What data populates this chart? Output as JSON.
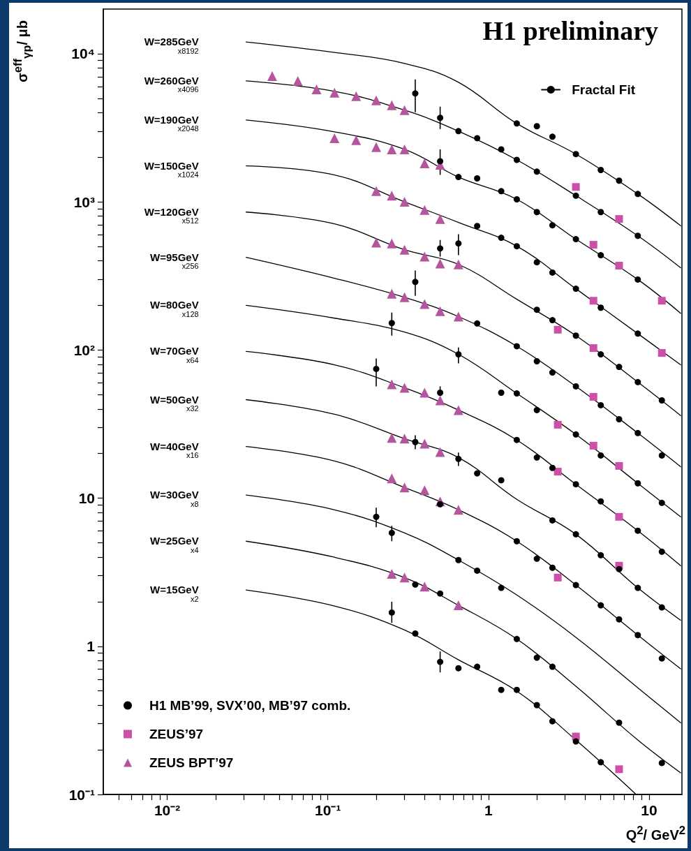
{
  "chart_data": {
    "type": "scatter",
    "title": "H1 preliminary",
    "xlabel": "Q$^{2}$/ GeV$^{2}$",
    "ylabel": "σ$^{eff}$$_{γp}$/ μb",
    "log": "xy",
    "legend": "bottom left",
    "xlim": [
      0.004,
      16
    ],
    "ylim": [
      0.1,
      20000
    ],
    "xticks": [
      {
        "value": 0.01,
        "label": "10⁻²"
      },
      {
        "value": 0.1,
        "label": "10⁻¹"
      },
      1,
      10
    ],
    "yticks": [
      {
        "value": 0.1,
        "label": "10⁻¹"
      },
      1,
      10,
      {
        "value": 100,
        "label": "10²"
      },
      {
        "value": 1000,
        "label": "10³"
      },
      {
        "value": 10000,
        "label": "10⁴"
      }
    ],
    "annotations": [
      "W=285GeV x8192",
      "W=260GeV x4096",
      "W=190GeV x2048",
      "W=150GeV x1024",
      "W=120GeV x512",
      "W=95GeV x256",
      "W=80GeV x128",
      "W=70GeV x64",
      "W=50GeV x32",
      "W=40GeV x16",
      "W=30GeV x8",
      "W=25GeV x4",
      "W=15GeV x2"
    ],
    "series": [
      {
        "name": "Fractal Fit",
        "type": "line",
        "color": "#000000",
        "marker": "none",
        "x": [
          0.031,
          0.11,
          0.3,
          0.65,
          1.5,
          3.5,
          8.5,
          15.7
        ],
        "values": [
          12000,
          10200,
          8600,
          6410,
          3380,
          2100,
          1130,
          690
        ]
      },
      {
        "type": "line",
        "color": "#000000",
        "marker": "none",
        "x": [
          0.031,
          0.11,
          0.3,
          0.65,
          1.5,
          3.5,
          8.5,
          15.7
        ],
        "values": [
          6550,
          5570,
          4160,
          3000,
          1920,
          1100,
          590,
          359
        ]
      },
      {
        "type": "line",
        "color": "#000000",
        "marker": "none",
        "x": [
          0.031,
          0.11,
          0.3,
          0.65,
          1.5,
          3.5,
          8.5,
          15.7
        ],
        "values": [
          3570,
          2970,
          2260,
          1470,
          1040,
          560,
          299,
          177
        ]
      },
      {
        "type": "line",
        "color": "#000000",
        "marker": "none",
        "x": [
          0.031,
          0.11,
          0.3,
          0.65,
          1.5,
          3.5,
          8.5,
          15.7
        ],
        "values": [
          1750,
          1520,
          1000,
          726,
          502,
          259,
          129,
          79.4
        ]
      },
      {
        "type": "line",
        "color": "#000000",
        "marker": "none",
        "x": [
          0.031,
          0.11,
          0.3,
          0.65,
          1.5,
          3.5,
          8.5,
          15.7
        ],
        "values": [
          853,
          710,
          475,
          378,
          220,
          125,
          60.7,
          36.1
        ]
      },
      {
        "type": "line",
        "color": "#000000",
        "marker": "none",
        "x": [
          0.031,
          0.11,
          0.3,
          0.65,
          1.5,
          3.5,
          8.5,
          15.7
        ],
        "values": [
          422,
          305,
          227,
          168,
          106,
          56.8,
          27.5,
          16.3
        ]
      },
      {
        "type": "line",
        "color": "#000000",
        "marker": "none",
        "x": [
          0.031,
          0.11,
          0.3,
          0.65,
          1.5,
          3.5,
          8.5,
          15.7
        ],
        "values": [
          200,
          164,
          132,
          93.5,
          50.9,
          26.9,
          12.6,
          7.48
        ]
      },
      {
        "type": "line",
        "color": "#000000",
        "marker": "none",
        "x": [
          0.031,
          0.11,
          0.3,
          0.65,
          1.5,
          3.5,
          8.5,
          15.7
        ],
        "values": [
          97.7,
          79.4,
          55.6,
          39.3,
          24.7,
          12.4,
          6.03,
          3.5
        ]
      },
      {
        "type": "line",
        "color": "#000000",
        "marker": "none",
        "x": [
          0.031,
          0.11,
          0.3,
          0.65,
          1.5,
          3.5,
          8.5,
          15.7
        ],
        "values": [
          46.2,
          36.8,
          25.2,
          18.8,
          9.82,
          5.7,
          2.48,
          1.5
        ]
      },
      {
        "type": "line",
        "color": "#000000",
        "marker": "none",
        "x": [
          0.031,
          0.11,
          0.3,
          0.65,
          1.5,
          3.5,
          8.5,
          15.7
        ],
        "values": [
          22.3,
          17.8,
          11.8,
          8.34,
          5.12,
          2.59,
          1.19,
          0.705
        ]
      },
      {
        "type": "line",
        "color": "#000000",
        "marker": "none",
        "x": [
          0.031,
          0.11,
          0.3,
          0.65,
          1.5,
          3.5,
          8.5,
          15.7
        ],
        "values": [
          10.5,
          8.34,
          5.83,
          3.82,
          2.22,
          1.15,
          0.525,
          0.305
        ]
      },
      {
        "type": "line",
        "color": "#000000",
        "marker": "none",
        "x": [
          0.031,
          0.11,
          0.3,
          0.65,
          1.5,
          3.5,
          8.5,
          15.7
        ],
        "values": [
          5.12,
          3.99,
          2.91,
          1.89,
          1.12,
          0.537,
          0.233,
          0.14
        ]
      },
      {
        "type": "line",
        "color": "#000000",
        "marker": "none",
        "x": [
          0.031,
          0.11,
          0.3,
          0.65,
          1.5,
          3.5,
          8.3
        ],
        "values": [
          2.4,
          1.87,
          1.29,
          0.811,
          0.498,
          0.233,
          0.1
        ]
      },
      {
        "name": "H1 MB’99, SVX’00, MB’97 comb.",
        "type": "scatter",
        "color": "#000000",
        "marker": "circle",
        "x": [
          1.5,
          2,
          2.5,
          3.5,
          5,
          6.5,
          8.5,
          0.35,
          0.5,
          0.65,
          0.85,
          1.2,
          1.5,
          2,
          3.5,
          5,
          8.5,
          0.5,
          0.65,
          0.85,
          1.2,
          1.5,
          2,
          2.5,
          3.5,
          5,
          8.5,
          0.85,
          1.2,
          1.5,
          2,
          2.5,
          3.5,
          5,
          8.5,
          0.5,
          0.65,
          2,
          2.5,
          3.5,
          5,
          6.5,
          8.5,
          12,
          0.35,
          0.85,
          1.5,
          2,
          2.5,
          3.5,
          5,
          6.5,
          8.5,
          12,
          0.25,
          0.65,
          1.2,
          1.5,
          2,
          3.5,
          5,
          8.5,
          12,
          0.2,
          0.5,
          1.5,
          2,
          2.5,
          3.5,
          5,
          8.5,
          12,
          0.35,
          0.65,
          0.85,
          1.2,
          2.5,
          3.5,
          5,
          6.5,
          8.5,
          12,
          0.5,
          1.5,
          2,
          2.5,
          3.5,
          5,
          6.5,
          8.5,
          12,
          0.2,
          0.25,
          0.65,
          0.85,
          1.2,
          0.35,
          0.5,
          1.5,
          2,
          2.5,
          6.5,
          12,
          0.25,
          0.35,
          0.5,
          0.65,
          0.85,
          1.2,
          1.5,
          2,
          2.5,
          3.5,
          5
        ],
        "values": [
          3380,
          3240,
          2750,
          2100,
          1640,
          1390,
          1130,
          5390,
          3690,
          3000,
          2690,
          2260,
          1920,
          1600,
          1100,
          853,
          590,
          1880,
          1470,
          1440,
          1180,
          1040,
          853,
          695,
          560,
          436,
          299,
          687,
          572,
          502,
          391,
          333,
          259,
          193,
          129,
          485,
          524,
          187,
          159,
          125,
          93.5,
          76.9,
          60.7,
          45.7,
          288,
          151,
          106,
          83.9,
          70.5,
          56.8,
          42.4,
          34.1,
          27.5,
          19.4,
          152,
          93.5,
          51.5,
          50.9,
          39.3,
          26.9,
          19.4,
          12.6,
          9.29,
          74.5,
          51.5,
          24.7,
          18.8,
          16,
          12.4,
          9.51,
          6.03,
          4.35,
          23.9,
          18.4,
          14.7,
          13.2,
          7.08,
          5.7,
          4.12,
          3.32,
          2.48,
          1.83,
          9.1,
          5.12,
          3.9,
          3.39,
          2.59,
          1.89,
          1.52,
          1.19,
          0.828,
          7.48,
          5.83,
          3.82,
          3.24,
          2.48,
          2.61,
          2.27,
          1.12,
          0.838,
          0.728,
          0.305,
          0.163,
          1.69,
          1.22,
          0.785,
          0.711,
          0.728,
          0.508,
          0.508,
          0.401,
          0.312,
          0.228,
          0.165
        ],
        "errors": [
          null,
          null,
          null,
          null,
          null,
          null,
          null,
          [
            4030,
            6700
          ],
          [
            3100,
            4390
          ],
          null,
          null,
          null,
          null,
          null,
          null,
          null,
          null,
          [
            1520,
            2260
          ],
          null,
          null,
          null,
          null,
          null,
          null,
          null,
          null,
          null,
          null,
          null,
          null,
          null,
          null,
          null,
          null,
          null,
          [
            427,
            553
          ],
          [
            436,
            604
          ],
          null,
          null,
          null,
          null,
          null,
          null,
          null,
          [
            232,
            344
          ],
          null,
          null,
          null,
          null,
          null,
          null,
          null,
          null,
          null,
          [
            125,
            179
          ],
          [
            81.3,
            104
          ],
          null,
          null,
          null,
          null,
          null,
          null,
          null,
          [
            56.8,
            87.7
          ],
          [
            48.8,
            56.8
          ],
          null,
          null,
          null,
          null,
          null,
          null,
          null,
          [
            21.4,
            26.6
          ],
          [
            16.5,
            20.3
          ],
          null,
          null,
          null,
          null,
          null,
          null,
          null,
          null,
          null,
          null,
          null,
          null,
          null,
          null,
          null,
          null,
          null,
          [
            6.36,
            8.61
          ],
          [
            5.12,
            6.5
          ],
          null,
          null,
          null,
          null,
          null,
          null,
          null,
          null,
          null,
          null,
          [
            1.44,
            2
          ],
          null,
          [
            0.667,
            0.923
          ],
          null,
          null,
          null,
          null,
          null,
          null,
          null,
          null
        ]
      },
      {
        "name": "ZEUS’97",
        "type": "scatter",
        "color": "#cc4fa8",
        "marker": "square",
        "x": [
          3.5,
          6.5,
          4.5,
          6.5,
          12,
          4.5,
          12,
          2.7,
          4.5,
          4.5,
          2.7,
          4.5,
          6.5,
          2.7,
          6.5,
          6.5,
          2.7,
          3.5,
          6.5
        ],
        "values": [
          1260,
          766,
          513,
          371,
          215,
          215,
          95.5,
          137,
          103,
          48.3,
          31.3,
          22.6,
          16.5,
          15.1,
          7.48,
          3.5,
          2.91,
          0.246,
          0.148
        ]
      },
      {
        "name": "ZEUS BPT’97",
        "type": "scatter",
        "color": "#b4559e",
        "marker": "triangle",
        "x": [
          0.045,
          0.065,
          0.085,
          0.11,
          0.15,
          0.2,
          0.25,
          0.3,
          0.11,
          0.15,
          0.2,
          0.25,
          0.3,
          0.4,
          0.5,
          0.2,
          0.25,
          0.3,
          0.4,
          0.5,
          0.2,
          0.25,
          0.3,
          0.4,
          0.5,
          0.65,
          0.25,
          0.3,
          0.4,
          0.5,
          0.65,
          0.25,
          0.3,
          0.4,
          0.5,
          0.65,
          0.25,
          0.3,
          0.4,
          0.5,
          0.25,
          0.3,
          0.4,
          0.5,
          0.65,
          0.25,
          0.3,
          0.4,
          0.65
        ],
        "values": [
          7060,
          6550,
          5750,
          5450,
          5160,
          4840,
          4490,
          4160,
          2690,
          2610,
          2340,
          2260,
          2260,
          1820,
          1780,
          1180,
          1100,
          1000,
          881,
          766,
          530,
          524,
          475,
          427,
          383,
          378,
          240,
          227,
          204,
          183,
          168,
          58.6,
          55.6,
          51.5,
          45.7,
          39.3,
          25.5,
          25.2,
          23.3,
          20.5,
          13.6,
          11.8,
          11.3,
          9.51,
          8.34,
          3.08,
          2.91,
          2.53,
          1.89
        ]
      }
    ]
  }
}
